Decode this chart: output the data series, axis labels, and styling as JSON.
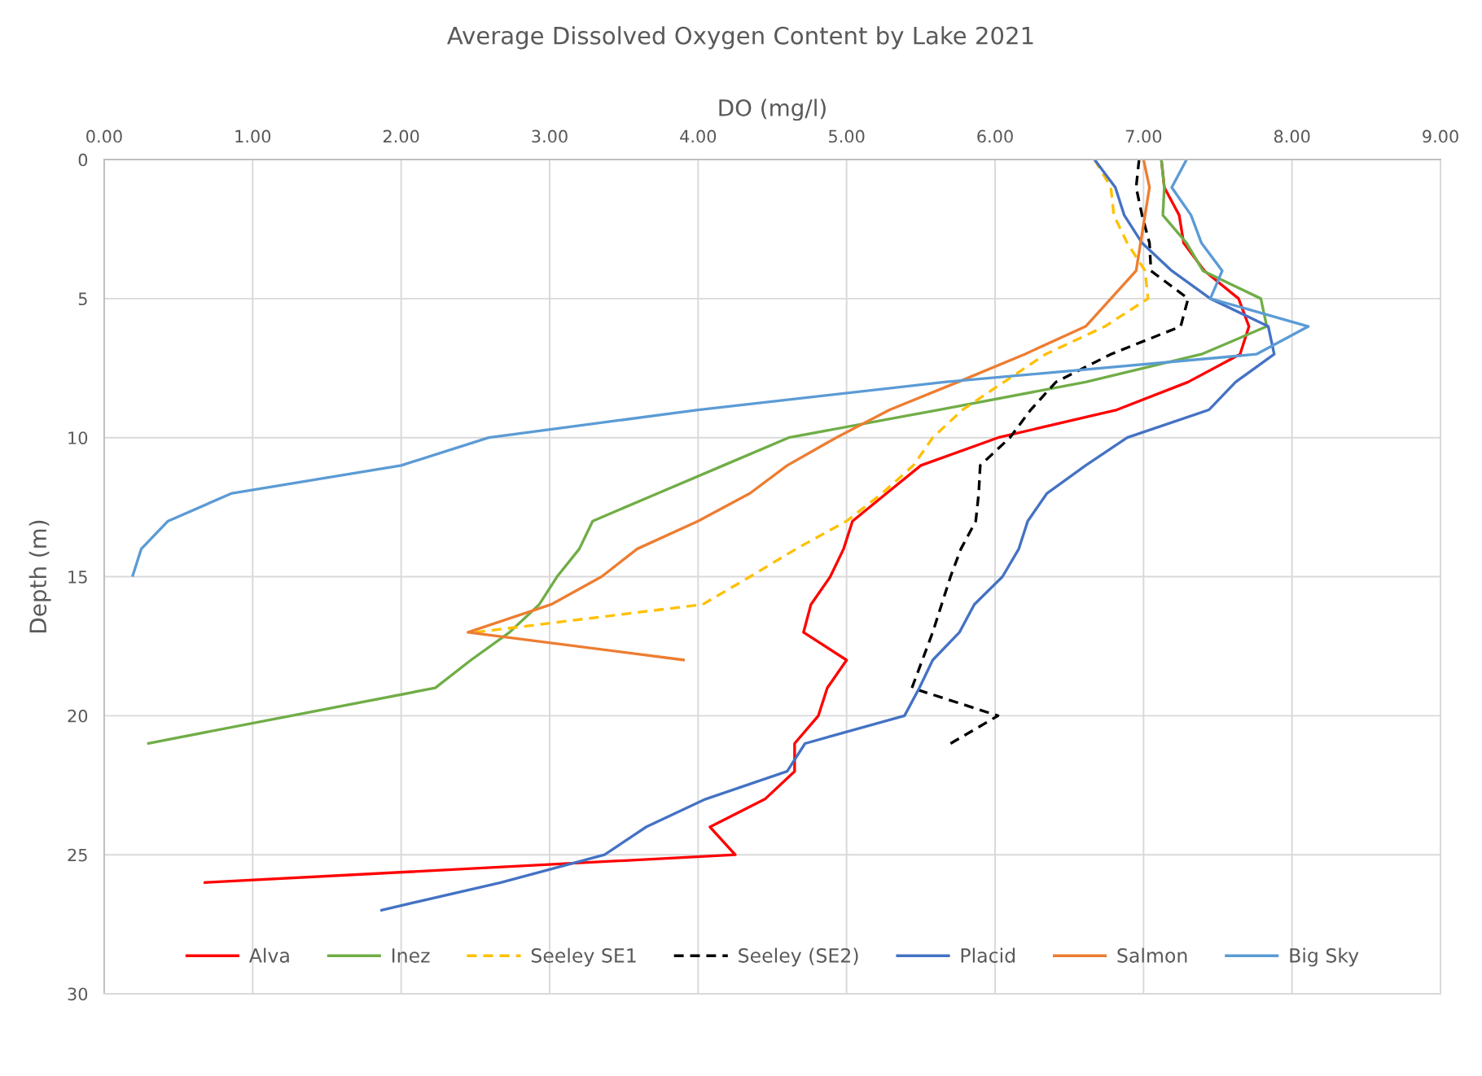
{
  "chart_data": {
    "type": "line",
    "title": "Average Dissolved Oxygen Content by Lake 2021",
    "xlabel": "DO (mg/l)",
    "ylabel": "Depth (m)",
    "xlim": [
      0,
      9
    ],
    "ylim": [
      30,
      0
    ],
    "xticks": [
      {
        "value": 0,
        "label": "0.00"
      },
      {
        "value": 1,
        "label": "1.00"
      },
      {
        "value": 2,
        "label": "2.00"
      },
      {
        "value": 3,
        "label": "3.00"
      },
      {
        "value": 4,
        "label": "4.00"
      },
      {
        "value": 5,
        "label": "5.00"
      },
      {
        "value": 6,
        "label": "6.00"
      },
      {
        "value": 7,
        "label": "7.00"
      },
      {
        "value": 8,
        "label": "8.00"
      },
      {
        "value": 9,
        "label": "9.00"
      }
    ],
    "yticks": [
      0,
      5,
      10,
      15,
      20,
      25,
      30
    ],
    "grid": true,
    "legend": "bottom",
    "series": [
      {
        "name": "Alva",
        "color": "#ff0000",
        "line_style": "solid",
        "x": [
          7.12,
          7.14,
          7.24,
          7.27,
          7.41,
          7.64,
          7.71,
          7.65,
          7.3,
          6.82,
          6.02,
          5.5,
          5.27,
          5.04,
          4.98,
          4.89,
          4.76,
          4.71,
          5.0,
          4.87,
          4.81,
          4.65,
          4.65,
          4.45,
          4.08,
          4.25,
          0.67
        ],
        "values": [
          0,
          1,
          2,
          3,
          4,
          5,
          6,
          7,
          8,
          9,
          10,
          11,
          12,
          13,
          14,
          15,
          16,
          17,
          18,
          19,
          20,
          21,
          22,
          23,
          24,
          25,
          26
        ]
      },
      {
        "name": "Inez",
        "color": "#70ad47",
        "line_style": "solid",
        "x": [
          7.12,
          7.14,
          7.13,
          7.29,
          7.4,
          7.79,
          7.83,
          7.39,
          6.61,
          5.62,
          4.61,
          4.17,
          3.73,
          3.29,
          3.2,
          3.05,
          2.93,
          2.73,
          2.47,
          2.23,
          1.26,
          0.29
        ],
        "values": [
          0,
          1,
          2,
          3,
          4,
          5,
          6,
          7,
          8,
          9,
          10,
          11,
          12,
          13,
          14,
          15,
          16,
          17,
          18,
          19,
          20,
          21
        ]
      },
      {
        "name": "Seeley SE1",
        "color": "#ffc000",
        "line_style": "dashed",
        "x": [
          6.67,
          6.78,
          6.8,
          6.89,
          7.01,
          7.03,
          6.74,
          6.34,
          6.06,
          5.78,
          5.58,
          5.45,
          5.24,
          5.0,
          4.66,
          4.35,
          4.03,
          2.5
        ],
        "values": [
          0,
          1,
          2,
          3,
          4,
          5,
          6,
          7,
          8,
          9,
          10,
          11,
          12,
          13,
          14,
          15,
          16,
          17
        ]
      },
      {
        "name": "Seeley (SE2)",
        "color": "#000000",
        "line_style": "dashed",
        "x": [
          6.97,
          6.95,
          6.99,
          7.04,
          7.05,
          7.3,
          7.25,
          6.78,
          6.41,
          6.24,
          6.1,
          5.9,
          5.89,
          5.87,
          5.77,
          5.7,
          5.64,
          5.58,
          5.51,
          5.44,
          6.02,
          5.7
        ],
        "values": [
          0,
          1,
          2,
          3,
          4,
          5,
          6,
          7,
          8,
          9,
          10,
          11,
          12,
          13,
          14,
          15,
          16,
          17,
          18,
          19,
          20,
          21
        ]
      },
      {
        "name": "Placid",
        "color": "#4472c4",
        "line_style": "solid",
        "x": [
          6.67,
          6.81,
          6.87,
          6.99,
          7.19,
          7.45,
          7.84,
          7.88,
          7.62,
          7.44,
          6.89,
          6.61,
          6.35,
          6.22,
          6.16,
          6.05,
          5.86,
          5.76,
          5.58,
          5.49,
          5.39,
          4.72,
          4.6,
          4.05,
          3.65,
          3.37,
          2.67,
          1.86
        ],
        "values": [
          0,
          1,
          2,
          3,
          4,
          5,
          6,
          7,
          8,
          9,
          10,
          11,
          12,
          13,
          14,
          15,
          16,
          17,
          18,
          19,
          20,
          21,
          22,
          23,
          24,
          25,
          26,
          27
        ]
      },
      {
        "name": "Salmon",
        "color": "#ed7d31",
        "line_style": "solid",
        "x": [
          7.0,
          7.04,
          7.01,
          6.98,
          6.95,
          6.78,
          6.61,
          6.2,
          5.75,
          5.29,
          4.93,
          4.6,
          4.35,
          4.0,
          3.59,
          3.35,
          3.01,
          2.45,
          3.91
        ],
        "values": [
          0,
          1,
          2,
          3,
          4,
          5,
          6,
          7,
          8,
          9,
          10,
          11,
          12,
          13,
          14,
          15,
          16,
          17,
          18
        ]
      },
      {
        "name": "Big Sky",
        "color": "#5b9bd5",
        "line_style": "solid",
        "x": [
          7.29,
          7.19,
          7.32,
          7.39,
          7.53,
          7.45,
          8.11,
          7.76,
          5.66,
          4.0,
          2.59,
          2.0,
          0.86,
          0.43,
          0.25,
          0.19
        ],
        "values": [
          0,
          1,
          2,
          3,
          4,
          5,
          6,
          7,
          8,
          9,
          10,
          11,
          12,
          13,
          14,
          15
        ]
      }
    ]
  }
}
